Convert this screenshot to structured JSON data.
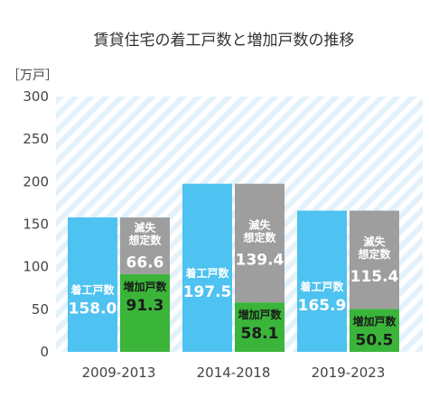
{
  "chart_data": {
    "type": "bar",
    "title": "賃貸住宅の着工戸数と増加戸数の推移",
    "unit_label": "［万戸］",
    "ylim": [
      0,
      300
    ],
    "yticks": [
      "0",
      "50",
      "100",
      "150",
      "200",
      "250",
      "300"
    ],
    "categories": [
      "2009-2013",
      "2014-2018",
      "2019-2023"
    ],
    "series": [
      {
        "name": "着工戸数",
        "values": [
          158.0,
          197.5,
          165.9
        ],
        "labels": [
          "158.0",
          "197.5",
          "165.9"
        ]
      },
      {
        "name": "増加戸数",
        "values": [
          91.3,
          58.1,
          50.5
        ],
        "labels": [
          "91.3",
          "58.1",
          "50.5"
        ]
      },
      {
        "name": "滅失想定数",
        "values": [
          66.6,
          139.4,
          115.4
        ],
        "labels": [
          "66.6",
          "139.4",
          "115.4"
        ]
      }
    ],
    "series_label_lines": {
      "着工戸数": [
        "着工戸数"
      ],
      "増加戸数": [
        "増加戸数"
      ],
      "滅失想定数": [
        "滅失",
        "想定数"
      ]
    },
    "colors": {
      "start": "#4ec2f0",
      "increase": "#3ab53a",
      "demolish": "#9e9e9e",
      "background_stripe": "#e3f1fb"
    },
    "grid": false
  }
}
